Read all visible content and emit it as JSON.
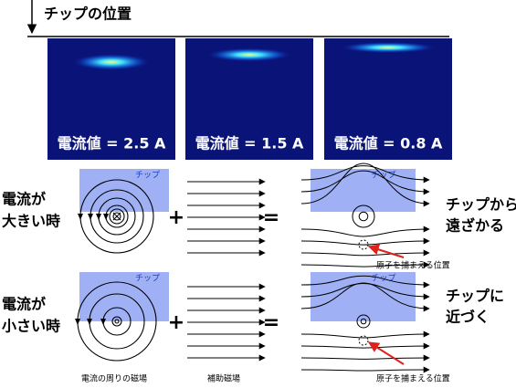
{
  "tip_position_label": "チップの位置",
  "images": [
    {
      "label": "電流値 = 2.5 A"
    },
    {
      "label": "電流値 = 1.5 A"
    },
    {
      "label": "電流値 = 0.8 A"
    }
  ],
  "rows": [
    {
      "condition": [
        "電流が",
        "大きい時"
      ],
      "tip_left": "チップ",
      "plus": "+",
      "equals": "=",
      "tip_right": "チップ",
      "result": [
        "チップから",
        "遠ざかる"
      ],
      "atom_label": "原子を捕まえる位置"
    },
    {
      "condition": [
        "電流が",
        "小さい時"
      ],
      "tip_left": "チップ",
      "plus": "+",
      "equals": "=",
      "tip_right": "チップ",
      "result": [
        "チップに",
        "近づく"
      ],
      "atom_label": "原子を捕まえる位置"
    }
  ],
  "captions": [
    "電流の周りの磁場",
    "補助磁場"
  ]
}
